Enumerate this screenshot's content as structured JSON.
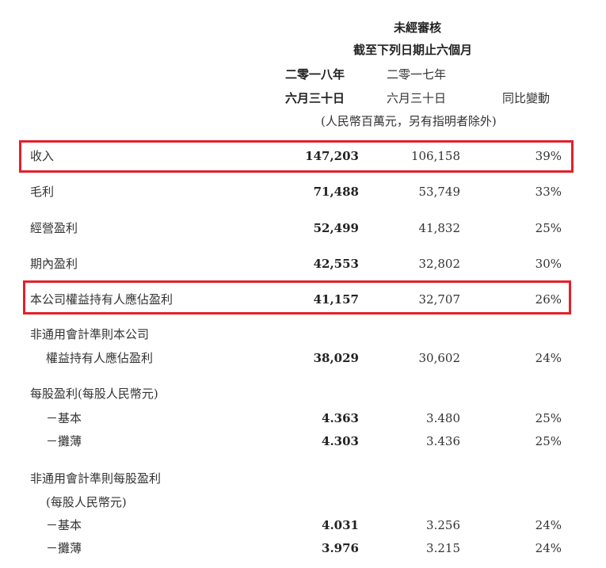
{
  "header": {
    "unaudited": "未經審核",
    "period": "截至下列日期止六個月",
    "year_2018": "二零一八年",
    "year_2017": "二零一七年",
    "date_2018": "六月三十日",
    "date_2017": "六月三十日",
    "yoy": "同比變動",
    "unit": "(人民幣百萬元，另有指明者除外)"
  },
  "highlight_color": "#e3202b",
  "rows": [
    {
      "label": "收入",
      "v2018": "147,203",
      "v2017": "106,158",
      "change": "39%"
    },
    {
      "label": "毛利",
      "v2018": "71,488",
      "v2017": "53,749",
      "change": "33%"
    },
    {
      "label": "經營盈利",
      "v2018": "52,499",
      "v2017": "41,832",
      "change": "25%"
    },
    {
      "label": "期內盈利",
      "v2018": "42,553",
      "v2017": "32,802",
      "change": "30%"
    },
    {
      "label": "本公司權益持有人應佔盈利",
      "v2018": "41,157",
      "v2017": "32,707",
      "change": "26%"
    },
    {
      "label": "非通用會計準則本公司",
      "label2": "權益持有人應佔盈利",
      "v2018": "38,029",
      "v2017": "30,602",
      "change": "24%"
    },
    {
      "label": "每股盈利(每股人民幣元)"
    },
    {
      "label": "－基本",
      "v2018": "4.363",
      "v2017": "3.480",
      "change": "25%"
    },
    {
      "label": "－攤薄",
      "v2018": "4.303",
      "v2017": "3.436",
      "change": "25%"
    },
    {
      "label": "非通用會計準則每股盈利",
      "label2": "(每股人民幣元)"
    },
    {
      "label": "－基本",
      "v2018": "4.031",
      "v2017": "3.256",
      "change": "24%"
    },
    {
      "label": "－攤薄",
      "v2018": "3.976",
      "v2017": "3.215",
      "change": "24%"
    }
  ]
}
